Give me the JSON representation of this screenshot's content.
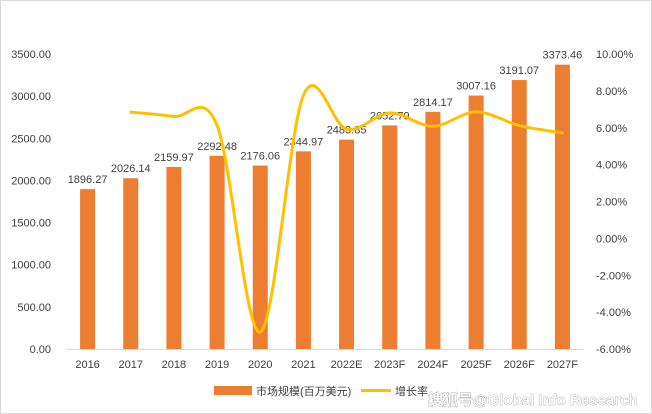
{
  "chart_data": {
    "type": "bar",
    "categories": [
      "2016",
      "2017",
      "2018",
      "2019",
      "2020",
      "2021",
      "2022E",
      "2023F",
      "2024F",
      "2025F",
      "2026F",
      "2027F"
    ],
    "series": [
      {
        "name": "市场规模(百万美元)",
        "type": "bar",
        "axis": "left",
        "color": "#ED7D31",
        "values": [
          1896.27,
          2026.14,
          2159.97,
          2292.48,
          2176.06,
          2344.97,
          2483.85,
          2652.79,
          2814.17,
          3007.16,
          3191.07,
          3373.46
        ],
        "labels": [
          "1896.27",
          "2026.14",
          "2159.97",
          "2292.48",
          "2176.06",
          "2344.97",
          "2483.85",
          "2652.79",
          "2814.17",
          "3007.16",
          "3191.07",
          "3373.46"
        ]
      },
      {
        "name": "增长率",
        "type": "line",
        "axis": "right",
        "color": "#FFC000",
        "smooth": true,
        "values": [
          null,
          6.85,
          6.61,
          6.13,
          -5.08,
          7.76,
          5.92,
          6.8,
          6.08,
          6.86,
          6.12,
          5.72
        ]
      }
    ],
    "y_left": {
      "min": 0,
      "max": 3500,
      "step": 500,
      "ticks": [
        "0.00",
        "500.00",
        "1000.00",
        "1500.00",
        "2000.00",
        "2500.00",
        "3000.00",
        "3500.00"
      ]
    },
    "y_right": {
      "min": -6,
      "max": 10,
      "step": 2,
      "ticks": [
        "-6.00%",
        "-4.00%",
        "-2.00%",
        "0.00%",
        "2.00%",
        "4.00%",
        "6.00%",
        "8.00%",
        "10.00%"
      ]
    },
    "grid": false,
    "legend_position": "bottom"
  },
  "watermark": "搜狐号@Global Info Research"
}
